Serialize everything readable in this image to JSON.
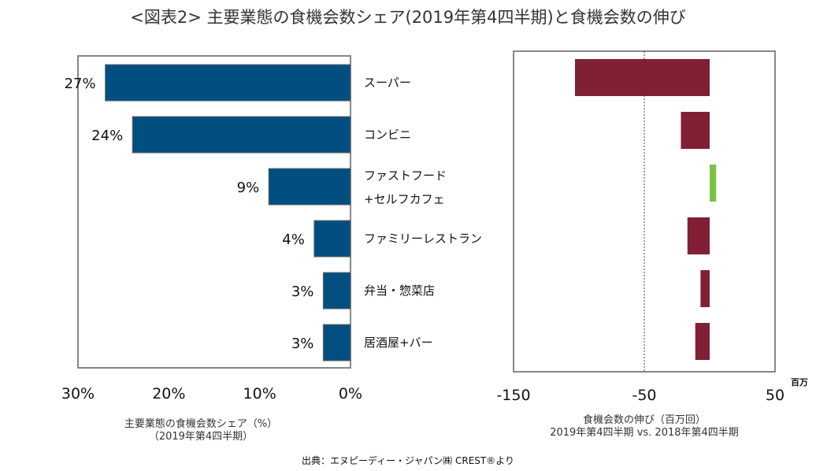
{
  "title": "<図表2> 主要業態の食機会数シェア(2019年第4四半期)と食機会数の伸び",
  "source": "出典：エヌピーディー・ジャパン㈱ CREST®より",
  "chart_data": [
    {
      "type": "bar",
      "orientation": "horizontal",
      "categories": [
        "スーパー",
        "コンビニ",
        "ファストフード+セルフカフェ",
        "ファミリーレストラン",
        "弁当・惣菜店",
        "居酒屋+バー"
      ],
      "category_lines": [
        [
          "スーパー"
        ],
        [
          "コンビニ"
        ],
        [
          "ファストフード",
          "+セルフカフェ"
        ],
        [
          "ファミリーレストラン"
        ],
        [
          "弁当・惣菜店"
        ],
        [
          "居酒屋+バー"
        ]
      ],
      "values": [
        27,
        24,
        9,
        4,
        3,
        3
      ],
      "data_labels": [
        "27%",
        "24%",
        "9%",
        "4%",
        "3%",
        "3%"
      ],
      "xlim": [
        30,
        0
      ],
      "x_ticks": [
        "30%",
        "20%",
        "10%",
        "0%"
      ],
      "xlabel": [
        "主要業態の食機会数シェア（%）",
        "（2019年第4四半期）"
      ],
      "bar_color": "#004f80"
    },
    {
      "type": "bar",
      "orientation": "horizontal",
      "categories": [
        "スーパー",
        "コンビニ",
        "ファストフード+セルフカフェ",
        "ファミリーレストラン",
        "弁当・惣菜店",
        "居酒屋+バー"
      ],
      "values": [
        -103,
        -22,
        5,
        -17,
        -7,
        -11
      ],
      "xlim": [
        -150,
        50
      ],
      "x_ticks": [
        "-150",
        "-50",
        "50"
      ],
      "x_tick_values": [
        -150,
        -50,
        50
      ],
      "reference_line": -50,
      "unit": "百万",
      "xlabel": [
        "食機会数の伸び（百万回）",
        "2019年第4四半期 vs. 2018年第4四半期"
      ],
      "colors": {
        "negative": "#7f2035",
        "positive": "#7ac143"
      }
    }
  ]
}
